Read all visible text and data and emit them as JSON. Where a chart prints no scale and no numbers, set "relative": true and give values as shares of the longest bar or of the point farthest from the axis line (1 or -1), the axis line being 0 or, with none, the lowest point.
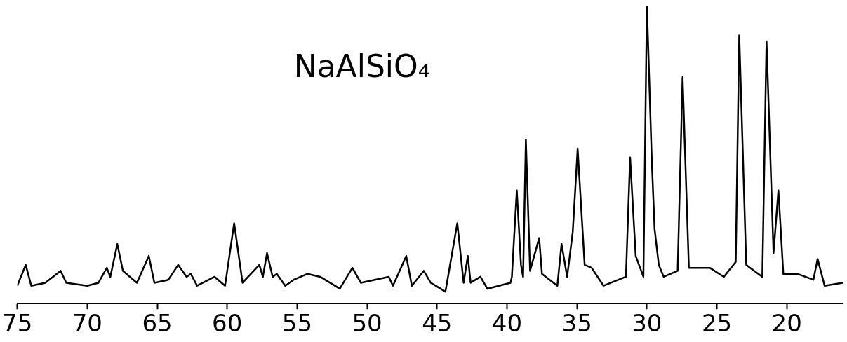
{
  "chart_data": {
    "type": "line",
    "relative": true,
    "annotations": [
      "NaAlSiO₄"
    ],
    "xlim": [
      75,
      16
    ],
    "xticks": [
      75,
      70,
      65,
      60,
      55,
      50,
      45,
      40,
      35,
      30,
      25,
      20
    ],
    "grid": false,
    "legend": false,
    "marker": "none",
    "line_style": "solid",
    "series": [
      {
        "color": "#000000",
        "x": [
          75.0,
          74.4,
          74.0,
          73.0,
          71.9,
          71.5,
          70.0,
          69.2,
          68.6,
          68.35,
          67.85,
          67.45,
          66.45,
          65.6,
          65.2,
          64.2,
          63.5,
          62.9,
          62.6,
          62.15,
          60.9,
          60.15,
          59.5,
          58.9,
          57.7,
          57.45,
          57.15,
          56.75,
          56.45,
          55.85,
          55.25,
          54.25,
          53.35,
          51.95,
          51.05,
          50.45,
          48.45,
          48.15,
          47.2,
          46.8,
          45.95,
          45.45,
          44.4,
          43.55,
          43.1,
          42.8,
          42.6,
          41.9,
          41.4,
          39.75,
          39.65,
          39.3,
          39.0,
          38.85,
          38.65,
          38.35,
          37.7,
          37.5,
          36.4,
          36.1,
          35.7,
          35.3,
          34.95,
          34.45,
          33.95,
          33.1,
          31.5,
          31.2,
          30.8,
          30.25,
          30.0,
          29.65,
          29.45,
          29.15,
          28.8,
          27.8,
          27.45,
          27.0,
          25.5,
          24.5,
          23.65,
          23.4,
          22.9,
          21.75,
          21.45,
          20.95,
          20.6,
          20.25,
          19.25,
          18.1,
          17.8,
          17.3,
          16.0
        ],
        "values": [
          0.06,
          0.13,
          0.06,
          0.07,
          0.11,
          0.07,
          0.06,
          0.07,
          0.12,
          0.09,
          0.2,
          0.11,
          0.07,
          0.16,
          0.07,
          0.08,
          0.13,
          0.09,
          0.1,
          0.06,
          0.09,
          0.06,
          0.27,
          0.07,
          0.13,
          0.09,
          0.17,
          0.09,
          0.1,
          0.06,
          0.08,
          0.1,
          0.09,
          0.05,
          0.12,
          0.07,
          0.09,
          0.06,
          0.16,
          0.06,
          0.11,
          0.07,
          0.04,
          0.27,
          0.07,
          0.16,
          0.07,
          0.09,
          0.05,
          0.07,
          0.09,
          0.38,
          0.13,
          0.09,
          0.55,
          0.11,
          0.22,
          0.1,
          0.06,
          0.2,
          0.09,
          0.24,
          0.52,
          0.13,
          0.12,
          0.06,
          0.09,
          0.49,
          0.16,
          0.09,
          1.0,
          0.48,
          0.25,
          0.13,
          0.09,
          0.11,
          0.76,
          0.12,
          0.12,
          0.09,
          0.14,
          0.9,
          0.13,
          0.09,
          0.88,
          0.17,
          0.38,
          0.1,
          0.1,
          0.08,
          0.15,
          0.06,
          0.07
        ]
      }
    ]
  }
}
